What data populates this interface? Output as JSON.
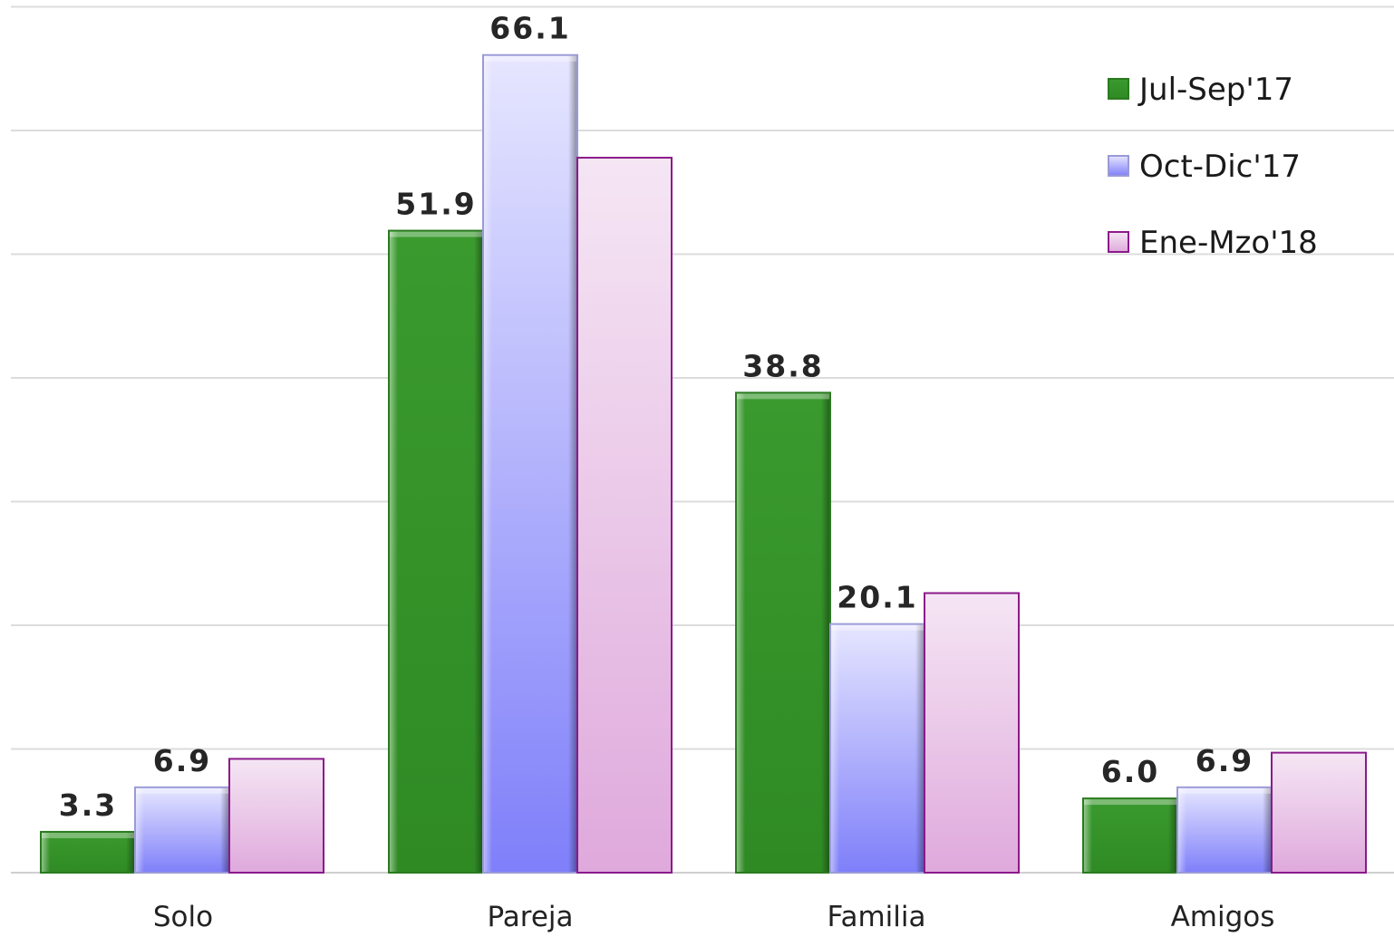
{
  "chart_data": {
    "type": "bar",
    "categories": [
      "Solo",
      "Pareja",
      "Familia",
      "Amigos"
    ],
    "series": [
      {
        "name": "Jul-Sep'17",
        "values": [
          3.3,
          51.9,
          38.8,
          6.0
        ],
        "labels": [
          "3.3",
          "51.9",
          "38.8",
          "6.0"
        ],
        "color": "#339933"
      },
      {
        "name": "Oct-Dic'17",
        "values": [
          6.9,
          66.1,
          20.1,
          6.9
        ],
        "labels": [
          "6.9",
          "66.1",
          "20.1",
          "6.9"
        ],
        "color": "#8a8aff"
      },
      {
        "name": "Ene-Mzo'18",
        "values": [
          9.2,
          57.8,
          22.6,
          9.7
        ],
        "labels": [
          "",
          "",
          "",
          ""
        ],
        "color": "#e3b3e0"
      }
    ],
    "title": "",
    "xlabel": "",
    "ylabel": "",
    "ylim": [
      0,
      70
    ],
    "grid": true,
    "legend": "top-right"
  }
}
